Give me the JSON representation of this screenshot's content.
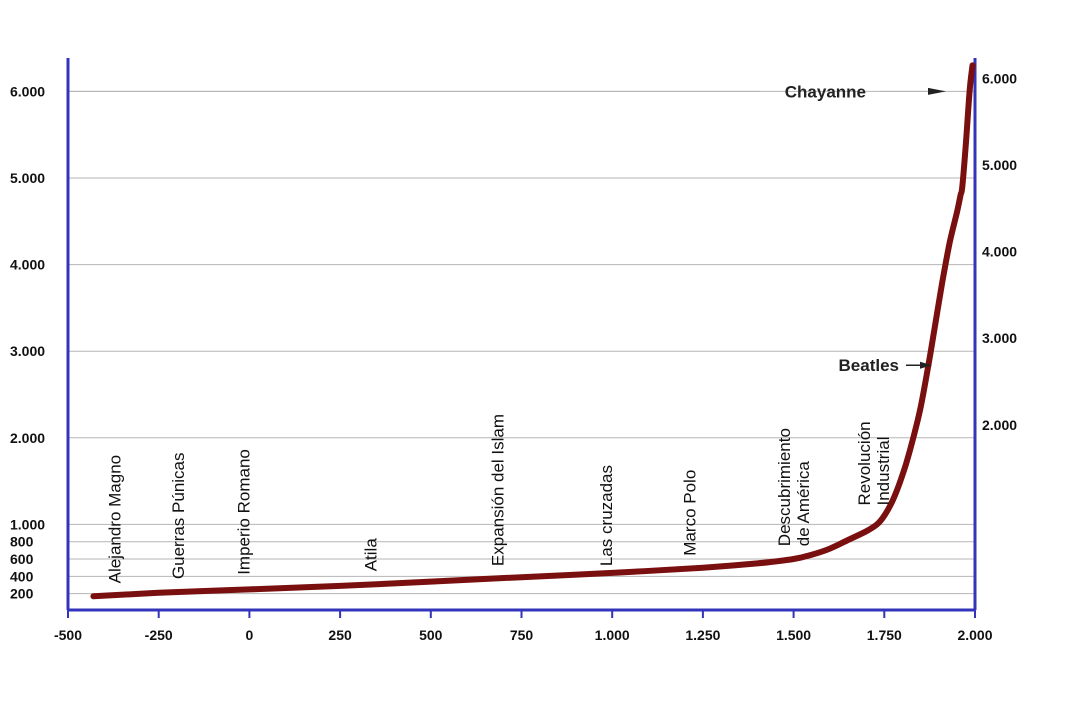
{
  "chart_data": {
    "type": "line",
    "title": "",
    "xlabel": "",
    "ylabel": "",
    "xlim": [
      -500,
      2000
    ],
    "ylim": [
      0,
      6500
    ],
    "grid": "horizontal",
    "x_ticks": [
      {
        "value": -500,
        "label": "-500"
      },
      {
        "value": -250,
        "label": "-250"
      },
      {
        "value": 0,
        "label": "0"
      },
      {
        "value": 250,
        "label": "250"
      },
      {
        "value": 500,
        "label": "500"
      },
      {
        "value": 750,
        "label": "750"
      },
      {
        "value": 1000,
        "label": "1.000"
      },
      {
        "value": 1250,
        "label": "1.250"
      },
      {
        "value": 1500,
        "label": "1.500"
      },
      {
        "value": 1750,
        "label": "1.750"
      },
      {
        "value": 2000,
        "label": "2.000"
      }
    ],
    "y_ticks_left": [
      {
        "value": 200,
        "label": "200"
      },
      {
        "value": 400,
        "label": "400"
      },
      {
        "value": 600,
        "label": "600"
      },
      {
        "value": 800,
        "label": "800"
      },
      {
        "value": 1000,
        "label": "1.000"
      },
      {
        "value": 2000,
        "label": "2.000"
      },
      {
        "value": 3000,
        "label": "3.000"
      },
      {
        "value": 4000,
        "label": "4.000"
      },
      {
        "value": 5000,
        "label": "5.000"
      },
      {
        "value": 6000,
        "label": "6.000"
      }
    ],
    "y_ticks_right": [
      {
        "value": 2000,
        "label": "2.000"
      },
      {
        "value": 3000,
        "label": "3.000"
      },
      {
        "value": 4000,
        "label": "4.000"
      },
      {
        "value": 5000,
        "label": "5.000"
      },
      {
        "value": 6000,
        "label": "6.000"
      }
    ],
    "series": [
      {
        "x": [
          -430,
          -250,
          0,
          250,
          500,
          750,
          1000,
          1250,
          1400,
          1500,
          1550,
          1600,
          1650,
          1700,
          1730,
          1750,
          1770,
          1790,
          1810,
          1830,
          1850,
          1870,
          1890,
          1910,
          1930,
          1950,
          1960,
          1965,
          1975,
          1985,
          1993
        ],
        "y": [
          170,
          210,
          250,
          290,
          340,
          390,
          440,
          500,
          550,
          600,
          650,
          720,
          820,
          920,
          1000,
          1100,
          1250,
          1450,
          1700,
          2000,
          2350,
          2800,
          3300,
          3800,
          4250,
          4600,
          4800,
          4900,
          5400,
          6000,
          6300
        ],
        "color": "#7a0f0f"
      }
    ],
    "events": [
      {
        "label": "Alejandro Magno",
        "x": -355,
        "y": 180
      },
      {
        "label": "Guerras Púnicas",
        "x": -180,
        "y": 230
      },
      {
        "label": "Imperio Romano",
        "x": 0,
        "y": 280
      },
      {
        "label": "Atila",
        "x": 350,
        "y": 320
      },
      {
        "label": "Expansión del Islam",
        "x": 700,
        "y": 380
      },
      {
        "label": "Las cruzadas",
        "x": 1000,
        "y": 380
      },
      {
        "label": "Marco Polo",
        "x": 1230,
        "y": 500
      },
      {
        "label": "Descubrimiento de América",
        "x": 1490,
        "y": 610
      },
      {
        "label": "Revolución Industrial",
        "x": 1710,
        "y": 1080
      }
    ],
    "annotations": [
      {
        "label": "Chayanne",
        "arrow_to": [
          1970,
          6000
        ]
      },
      {
        "label": "Beatles",
        "arrow_to": [
          1895,
          2850
        ]
      }
    ]
  },
  "colors": {
    "axis": "#3333bb",
    "line": "#7a0f0f",
    "grid": "#b5b5b5"
  }
}
